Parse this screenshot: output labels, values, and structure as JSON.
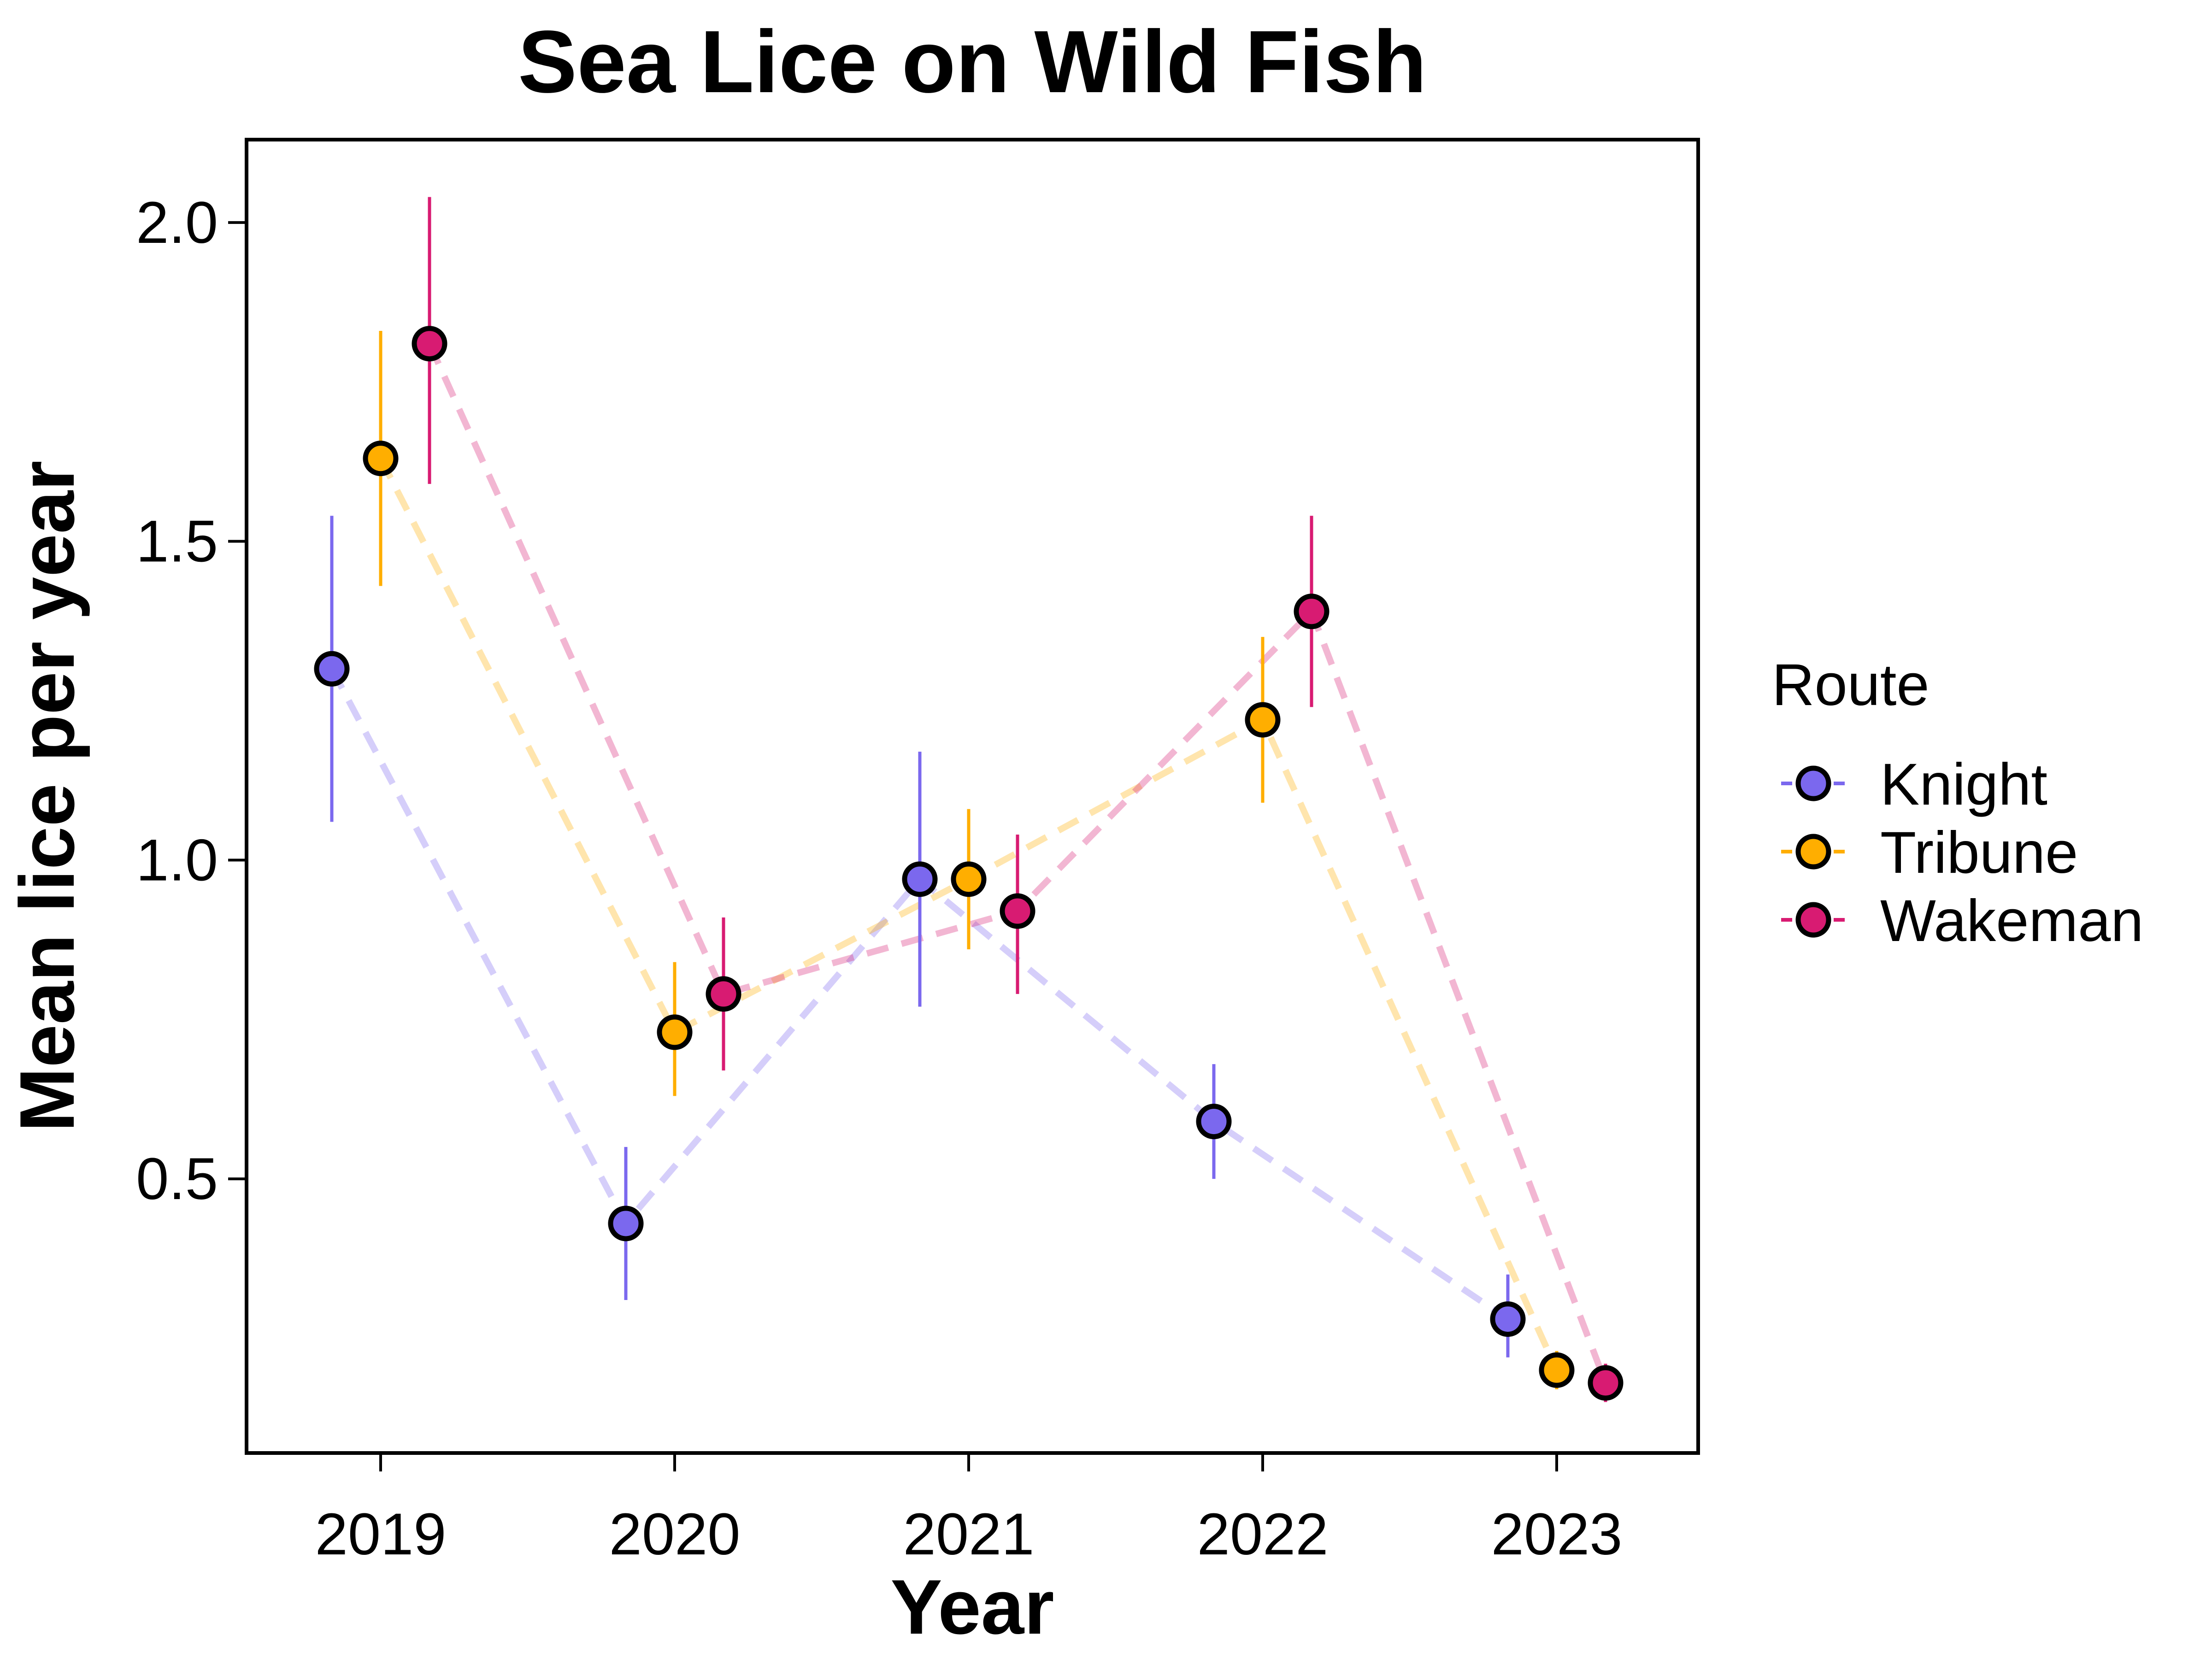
{
  "chart_data": {
    "type": "scatter",
    "title": "Sea Lice on Wild Fish",
    "xlabel": "Year",
    "ylabel": "Mean lice per year",
    "categories": [
      "2019",
      "2020",
      "2021",
      "2022",
      "2023"
    ],
    "ylim": [
      0.07,
      2.13
    ],
    "yticks": [
      "0.5",
      "1.0",
      "1.5",
      "2.0"
    ],
    "grid": false,
    "legend": {
      "title": "Route",
      "placement": "right"
    },
    "series": [
      {
        "name": "Knight",
        "color": "#7B68EE",
        "values": [
          1.3,
          0.43,
          0.97,
          0.59,
          0.28
        ],
        "err_low": [
          1.06,
          0.31,
          0.77,
          0.5,
          0.22
        ],
        "err_high": [
          1.54,
          0.55,
          1.17,
          0.68,
          0.35
        ]
      },
      {
        "name": "Tribune",
        "color": "#FFAE00",
        "values": [
          1.63,
          0.73,
          0.97,
          1.22,
          0.2
        ],
        "err_low": [
          1.43,
          0.63,
          0.86,
          1.09,
          0.17
        ],
        "err_high": [
          1.83,
          0.84,
          1.08,
          1.35,
          0.23
        ]
      },
      {
        "name": "Wakeman",
        "color": "#D81B72",
        "values": [
          1.81,
          0.79,
          0.92,
          1.39,
          0.18
        ],
        "err_low": [
          1.59,
          0.67,
          0.79,
          1.24,
          0.15
        ],
        "err_high": [
          2.04,
          0.91,
          1.04,
          1.54,
          0.21
        ]
      }
    ]
  }
}
